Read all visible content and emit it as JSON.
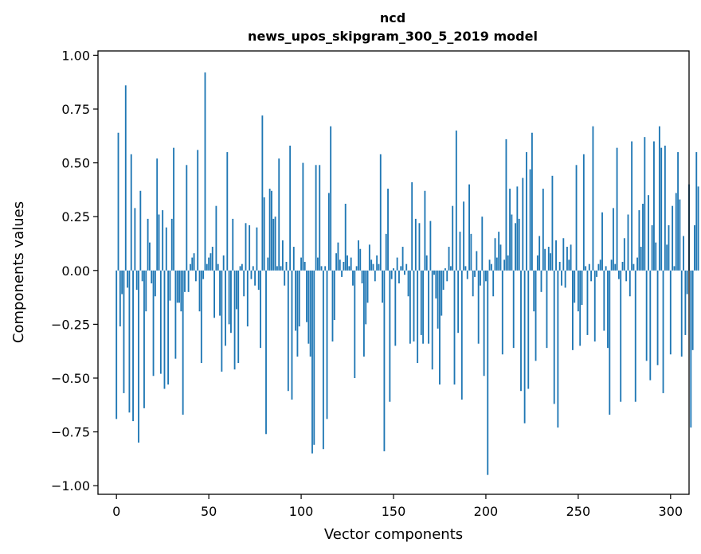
{
  "chart_data": {
    "type": "bar",
    "title": "ncd",
    "subtitle": "news_upos_skipgram_300_5_2019 model",
    "xlabel": "Vector components",
    "ylabel": "Components values",
    "xlim": [
      -10,
      310
    ],
    "ylim": [
      -1.04,
      1.02
    ],
    "xticks": [
      0,
      50,
      100,
      150,
      200,
      250,
      300
    ],
    "yticks": [
      1.0,
      0.75,
      0.5,
      0.25,
      0.0,
      -0.25,
      -0.5,
      -0.75,
      -1.0
    ],
    "ytick_labels": [
      "1.00",
      "0.75",
      "0.50",
      "0.25",
      "0.00",
      "−0.25",
      "−0.50",
      "−0.75",
      "−1.00"
    ],
    "grid": false,
    "bar_color": "#1f77b4",
    "values": [
      -0.69,
      0.64,
      -0.26,
      -0.11,
      -0.57,
      0.86,
      -0.08,
      -0.66,
      0.54,
      -0.7,
      0.29,
      -0.09,
      -0.8,
      0.37,
      -0.05,
      -0.64,
      -0.19,
      0.24,
      0.13,
      -0.06,
      -0.49,
      -0.12,
      0.52,
      0.26,
      -0.48,
      0.28,
      -0.55,
      0.2,
      -0.53,
      -0.14,
      0.24,
      0.57,
      -0.41,
      -0.15,
      -0.15,
      -0.19,
      -0.67,
      -0.1,
      0.49,
      -0.1,
      0.03,
      0.06,
      0.08,
      -0.05,
      0.56,
      -0.19,
      -0.43,
      -0.04,
      0.92,
      0.03,
      0.06,
      0.08,
      0.11,
      -0.22,
      0.3,
      0.03,
      -0.21,
      -0.47,
      0.07,
      -0.35,
      0.55,
      -0.25,
      -0.29,
      0.24,
      -0.46,
      -0.18,
      -0.43,
      0.02,
      0.03,
      -0.12,
      0.22,
      -0.26,
      0.21,
      -0.04,
      0.02,
      -0.07,
      0.2,
      -0.09,
      -0.36,
      0.72,
      0.34,
      -0.76,
      0.06,
      0.38,
      0.37,
      0.24,
      0.25,
      0.02,
      0.52,
      0.02,
      0.14,
      -0.07,
      0.04,
      -0.56,
      0.58,
      -0.6,
      0.11,
      -0.28,
      -0.4,
      -0.26,
      0.06,
      0.5,
      0.04,
      -0.24,
      -0.34,
      -0.4,
      -0.85,
      -0.81,
      0.49,
      0.06,
      0.49,
      0.02,
      -0.83,
      0.02,
      -0.69,
      0.36,
      0.67,
      -0.33,
      -0.23,
      0.08,
      0.13,
      0.05,
      -0.03,
      0.04,
      0.31,
      0.07,
      0.02,
      0.06,
      -0.07,
      -0.5,
      0.02,
      0.14,
      0.1,
      -0.06,
      -0.4,
      -0.25,
      -0.15,
      0.12,
      0.05,
      0.03,
      -0.05,
      0.07,
      0.03,
      0.54,
      -0.15,
      -0.84,
      0.17,
      0.38,
      -0.61,
      -0.04,
      0.01,
      -0.35,
      0.06,
      -0.06,
      0.02,
      0.11,
      -0.02,
      0.03,
      -0.12,
      -0.34,
      0.41,
      -0.33,
      0.24,
      -0.43,
      0.22,
      -0.3,
      -0.34,
      0.37,
      0.07,
      -0.34,
      0.23,
      -0.46,
      -0.02,
      -0.13,
      -0.27,
      -0.53,
      -0.21,
      -0.09,
      0.01,
      -0.05,
      0.11,
      0.02,
      0.3,
      -0.53,
      0.65,
      -0.29,
      0.18,
      -0.6,
      0.32,
      0.02,
      -0.04,
      0.4,
      0.17,
      -0.12,
      -0.03,
      0.09,
      -0.34,
      -0.07,
      0.25,
      -0.49,
      -0.05,
      -0.95,
      0.05,
      0.03,
      -0.12,
      0.15,
      0.06,
      0.18,
      0.12,
      -0.39,
      0.05,
      0.61,
      0.07,
      0.38,
      0.26,
      -0.36,
      0.22,
      0.39,
      0.24,
      -0.56,
      0.43,
      -0.71,
      0.55,
      -0.55,
      0.47,
      0.64,
      -0.19,
      -0.42,
      0.07,
      0.16,
      -0.1,
      0.38,
      0.1,
      -0.36,
      0.11,
      0.08,
      0.44,
      -0.62,
      0.14,
      -0.73,
      0.04,
      -0.07,
      0.15,
      -0.08,
      0.11,
      0.05,
      0.12,
      -0.37,
      -0.15,
      0.49,
      -0.19,
      -0.35,
      -0.16,
      0.54,
      0.02,
      -0.3,
      0.03,
      -0.05,
      0.67,
      -0.33,
      -0.03,
      0.03,
      0.05,
      0.27,
      -0.28,
      0.02,
      -0.36,
      -0.67,
      0.05,
      0.29,
      0.03,
      0.57,
      -0.04,
      -0.61,
      0.04,
      0.15,
      -0.05,
      0.26,
      -0.12,
      0.6,
      0.03,
      -0.61,
      0.06,
      0.28,
      0.11,
      0.31,
      0.62,
      -0.42,
      0.35,
      -0.51,
      0.21,
      0.6,
      0.13,
      -0.44,
      0.67,
      0.57,
      -0.57,
      0.58,
      0.12,
      0.21,
      -0.39,
      0.3,
      0.02,
      0.36,
      0.55,
      0.33,
      -0.4,
      0.16,
      -0.3,
      -0.11,
      0.4,
      -0.73,
      -0.37,
      0.21,
      0.55,
      0.39
    ]
  }
}
